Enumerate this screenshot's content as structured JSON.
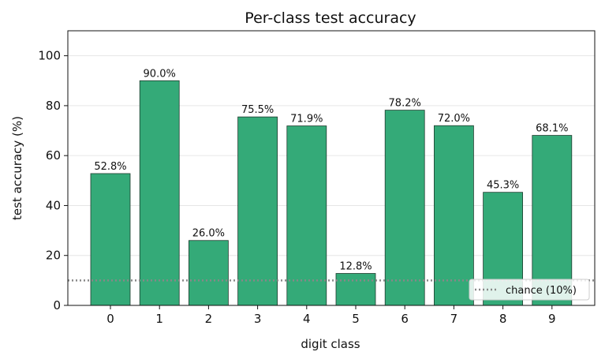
{
  "chart_data": {
    "type": "bar",
    "title": "Per-class test accuracy",
    "xlabel": "digit class",
    "ylabel": "test accuracy (%)",
    "categories": [
      "0",
      "1",
      "2",
      "3",
      "4",
      "5",
      "6",
      "7",
      "8",
      "9"
    ],
    "values": [
      52.8,
      90.0,
      26.0,
      75.5,
      71.9,
      12.8,
      78.2,
      72.0,
      45.3,
      68.1
    ],
    "value_labels": [
      "52.8%",
      "90.0%",
      "26.0%",
      "75.5%",
      "71.9%",
      "12.8%",
      "78.2%",
      "72.0%",
      "45.3%",
      "68.1%"
    ],
    "ylim": [
      0,
      110
    ],
    "yticks": [
      0,
      20,
      40,
      60,
      80,
      100
    ],
    "ytick_labels": [
      "0",
      "20",
      "40",
      "60",
      "80",
      "100"
    ],
    "grid": "y-axis, light",
    "bar_color": "#34AA78",
    "bar_edge_color": "#1f3b2e",
    "reference_line": {
      "label": "chance (10%)",
      "value": 10,
      "style": "dotted",
      "color": "#888888"
    },
    "legend": {
      "position": "bottom-right",
      "entries": [
        "chance (10%)"
      ]
    }
  }
}
